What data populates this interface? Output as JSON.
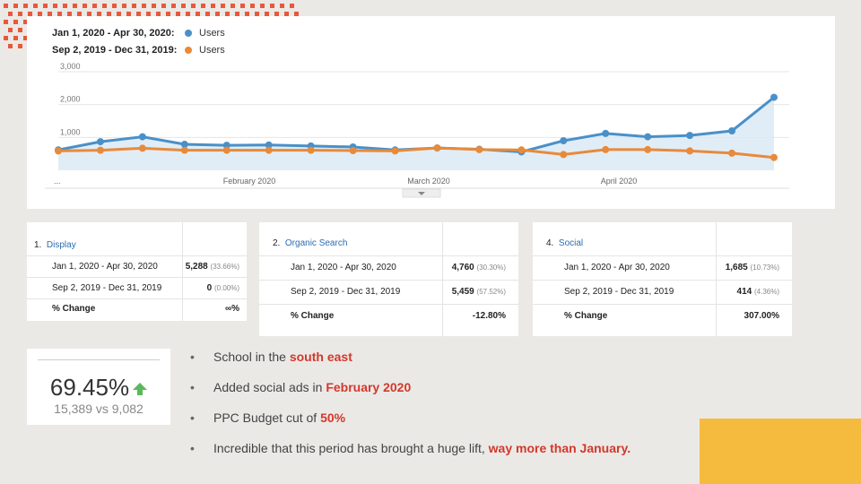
{
  "colors": {
    "background": "#ebe9e6",
    "dots": "#e8583a",
    "series_2020": "#4a90c8",
    "series_2019": "#e88a3a",
    "highlight": "#d2382b",
    "corner_block": "#f5bb3f",
    "up_arrow": "#5cb85c"
  },
  "chart": {
    "legend": [
      {
        "range": "Jan 1, 2020 - Apr 30, 2020:",
        "metric": "Users"
      },
      {
        "range": "Sep 2, 2019 - Dec 31, 2019:",
        "metric": "Users"
      }
    ],
    "more_icon": "expand-more-icon"
  },
  "chart_data": {
    "type": "line",
    "y_ticks": [
      "3,000",
      "2,000",
      "1,000"
    ],
    "ylim": [
      0,
      3000
    ],
    "x_ticks": [
      "...",
      "February 2020",
      "March 2020",
      "April 2020"
    ],
    "grid": true,
    "series": [
      {
        "name": "Jan 1, 2020 - Apr 30, 2020: Users",
        "values": [
          620,
          870,
          1020,
          790,
          760,
          770,
          740,
          710,
          620,
          680,
          640,
          560,
          900,
          1120,
          1020,
          1060,
          1200,
          2220
        ]
      },
      {
        "name": "Sep 2, 2019 - Dec 31, 2019: Users",
        "values": [
          590,
          610,
          670,
          610,
          610,
          610,
          610,
          600,
          590,
          680,
          630,
          620,
          480,
          630,
          630,
          590,
          520,
          390
        ]
      }
    ]
  },
  "tables": [
    {
      "index": "1.",
      "name": "Display",
      "rows": [
        {
          "label": "Jan 1, 2020 - Apr 30, 2020",
          "value": "5,288",
          "pct": "(33.66%)"
        },
        {
          "label": "Sep 2, 2019 - Dec 31, 2019",
          "value": "0",
          "pct": "(0.00%)"
        }
      ],
      "change_label": "% Change",
      "change_value": "∞%"
    },
    {
      "index": "2.",
      "name": "Organic Search",
      "rows": [
        {
          "label": "Jan 1, 2020 - Apr 30, 2020",
          "value": "4,760",
          "pct": "(30.30%)"
        },
        {
          "label": "Sep 2, 2019 - Dec 31, 2019",
          "value": "5,459",
          "pct": "(57.52%)"
        }
      ],
      "change_label": "% Change",
      "change_value": "-12.80%"
    },
    {
      "index": "4.",
      "name": "Social",
      "rows": [
        {
          "label": "Jan 1, 2020 - Apr 30, 2020",
          "value": "1,685",
          "pct": "(10.73%)"
        },
        {
          "label": "Sep 2, 2019 - Dec 31, 2019",
          "value": "414",
          "pct": "(4.36%)"
        }
      ],
      "change_label": "% Change",
      "change_value": "307.00%"
    }
  ],
  "kpi": {
    "value": "69.45%",
    "comparison": "15,389 vs 9,082",
    "icon": "up-arrow-icon"
  },
  "bullets": [
    {
      "bullet": "•",
      "text": "School in the ",
      "highlight": "south east"
    },
    {
      "bullet": "•",
      "text": "Added social ads in ",
      "highlight": "February 2020"
    },
    {
      "bullet": "•",
      "text": "PPC Budget cut of ",
      "highlight": "50%"
    },
    {
      "bullet": "•",
      "text": "Incredible that this period has brought a huge lift, ",
      "highlight": "way more than January."
    }
  ]
}
